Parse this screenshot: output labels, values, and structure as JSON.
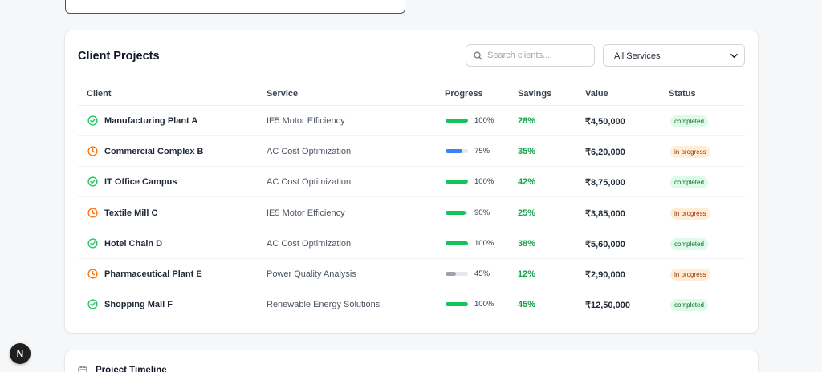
{
  "projects_card": {
    "title": "Client Projects",
    "search_placeholder": "Search clients...",
    "service_filter": "All Services",
    "columns": {
      "client": "Client",
      "service": "Service",
      "progress": "Progress",
      "savings": "Savings",
      "value": "Value",
      "status": "Status"
    },
    "rows": [
      {
        "client": "Manufacturing Plant A",
        "service": "IE5 Motor Efficiency",
        "progress": 1.0,
        "progress_label": "100%",
        "savings": "28%",
        "value": "₹4,50,000",
        "status": "completed",
        "icon": "check-circle-icon",
        "bar_color": "#16c25a"
      },
      {
        "client": "Commercial Complex B",
        "service": "AC Cost Optimization",
        "progress": 0.75,
        "progress_label": "75%",
        "savings": "35%",
        "value": "₹6,20,000",
        "status": "in progress",
        "icon": "clock-icon",
        "bar_color": "#3b82f6"
      },
      {
        "client": "IT Office Campus",
        "service": "AC Cost Optimization",
        "progress": 1.0,
        "progress_label": "100%",
        "savings": "42%",
        "value": "₹8,75,000",
        "status": "completed",
        "icon": "check-circle-icon",
        "bar_color": "#16c25a"
      },
      {
        "client": "Textile Mill C",
        "service": "IE5 Motor Efficiency",
        "progress": 0.9,
        "progress_label": "90%",
        "savings": "25%",
        "value": "₹3,85,000",
        "status": "in progress",
        "icon": "clock-icon",
        "bar_color": "#16c25a"
      },
      {
        "client": "Hotel Chain D",
        "service": "AC Cost Optimization",
        "progress": 1.0,
        "progress_label": "100%",
        "savings": "38%",
        "value": "₹5,60,000",
        "status": "completed",
        "icon": "check-circle-icon",
        "bar_color": "#16c25a"
      },
      {
        "client": "Pharmaceutical Plant E",
        "service": "Power Quality Analysis",
        "progress": 0.45,
        "progress_label": "45%",
        "savings": "12%",
        "value": "₹2,90,000",
        "status": "in progress",
        "icon": "clock-icon",
        "bar_color": "#9ca3af"
      },
      {
        "client": "Shopping Mall F",
        "service": "Renewable Energy Solutions",
        "progress": 1.0,
        "progress_label": "100%",
        "savings": "45%",
        "value": "₹12,50,000",
        "status": "completed",
        "icon": "check-circle-icon",
        "bar_color": "#16c25a"
      }
    ]
  },
  "timeline_card": {
    "title": "Project Timeline"
  },
  "dev_badge": {
    "letter": "N"
  },
  "colors": {
    "completed_icon": "#22c55e",
    "in_progress_icon": "#f97316",
    "savings": "#16a34a"
  }
}
